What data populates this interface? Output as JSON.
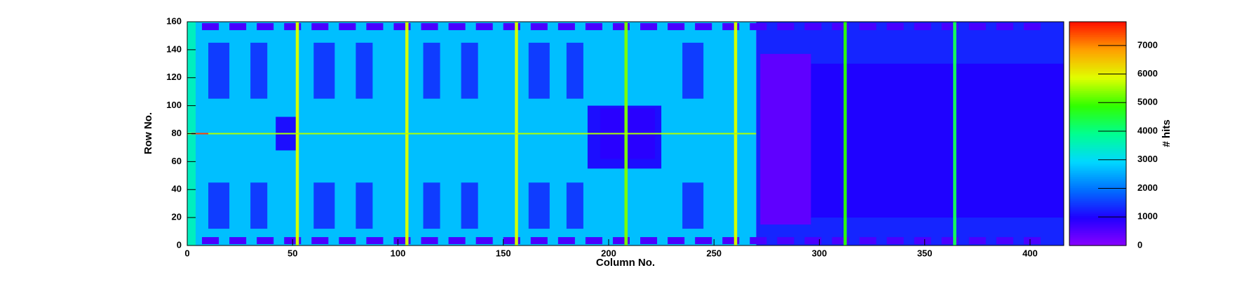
{
  "chart_data": {
    "type": "heatmap",
    "xlabel": "Column No.",
    "ylabel": "Row No.",
    "zlabel": "# hits",
    "xlim": [
      0,
      416
    ],
    "ylim": [
      0,
      160
    ],
    "zlim": [
      0,
      7830
    ],
    "xticks": [
      0,
      50,
      100,
      150,
      200,
      250,
      300,
      350,
      400
    ],
    "yticks": [
      0,
      20,
      40,
      60,
      80,
      100,
      120,
      140,
      160
    ],
    "zticks": [
      0,
      1000,
      2000,
      3000,
      4000,
      5000,
      6000,
      7000
    ],
    "colormap": [
      "#8a00ff",
      "#2000ff",
      "#0070ff",
      "#00d8ff",
      "#00ff90",
      "#30ff00",
      "#e0ff00",
      "#ffa000",
      "#ff1000"
    ],
    "cells": [
      {
        "x": [
          0,
          270
        ],
        "y": [
          0,
          160
        ],
        "value": 2700
      },
      {
        "x": [
          270,
          416
        ],
        "y": [
          0,
          160
        ],
        "value": 1300
      },
      {
        "x": [
          0,
          4
        ],
        "y": [
          0,
          160
        ],
        "value": 3500
      },
      {
        "x": [
          10,
          20
        ],
        "y": [
          105,
          145
        ],
        "value": 1500
      },
      {
        "x": [
          30,
          38
        ],
        "y": [
          105,
          145
        ],
        "value": 1500
      },
      {
        "x": [
          60,
          70
        ],
        "y": [
          105,
          145
        ],
        "value": 1500
      },
      {
        "x": [
          80,
          88
        ],
        "y": [
          105,
          145
        ],
        "value": 1500
      },
      {
        "x": [
          112,
          120
        ],
        "y": [
          105,
          145
        ],
        "value": 1500
      },
      {
        "x": [
          130,
          138
        ],
        "y": [
          105,
          145
        ],
        "value": 1500
      },
      {
        "x": [
          162,
          172
        ],
        "y": [
          105,
          145
        ],
        "value": 1500
      },
      {
        "x": [
          180,
          188
        ],
        "y": [
          105,
          145
        ],
        "value": 1500
      },
      {
        "x": [
          235,
          245
        ],
        "y": [
          105,
          145
        ],
        "value": 1500
      },
      {
        "x": [
          10,
          20
        ],
        "y": [
          12,
          45
        ],
        "value": 1500
      },
      {
        "x": [
          30,
          38
        ],
        "y": [
          12,
          45
        ],
        "value": 1500
      },
      {
        "x": [
          60,
          70
        ],
        "y": [
          12,
          45
        ],
        "value": 1500
      },
      {
        "x": [
          80,
          88
        ],
        "y": [
          12,
          45
        ],
        "value": 1500
      },
      {
        "x": [
          112,
          120
        ],
        "y": [
          12,
          45
        ],
        "value": 1500
      },
      {
        "x": [
          130,
          138
        ],
        "y": [
          12,
          45
        ],
        "value": 1500
      },
      {
        "x": [
          162,
          172
        ],
        "y": [
          12,
          45
        ],
        "value": 1500
      },
      {
        "x": [
          180,
          188
        ],
        "y": [
          12,
          45
        ],
        "value": 1500
      },
      {
        "x": [
          235,
          245
        ],
        "y": [
          12,
          45
        ],
        "value": 1500
      },
      {
        "x": [
          42,
          52
        ],
        "y": [
          68,
          92
        ],
        "value": 1100
      },
      {
        "x": [
          190,
          225
        ],
        "y": [
          55,
          100
        ],
        "value": 1100
      },
      {
        "x": [
          196,
          222
        ],
        "y": [
          62,
          98
        ],
        "value": 900
      },
      {
        "x": [
          296,
          416
        ],
        "y": [
          20,
          130
        ],
        "value": 1000
      },
      {
        "x": [
          272,
          296
        ],
        "y": [
          15,
          137
        ],
        "value": 400
      },
      {
        "x": [
          7,
          15
        ],
        "y": [
          154,
          159
        ],
        "value": 600
      },
      {
        "x": [
          20,
          28
        ],
        "y": [
          154,
          159
        ],
        "value": 600
      },
      {
        "x": [
          33,
          41
        ],
        "y": [
          154,
          159
        ],
        "value": 600
      },
      {
        "x": [
          46,
          54
        ],
        "y": [
          154,
          159
        ],
        "value": 600
      },
      {
        "x": [
          59,
          67
        ],
        "y": [
          154,
          159
        ],
        "value": 600
      },
      {
        "x": [
          72,
          80
        ],
        "y": [
          154,
          159
        ],
        "value": 600
      },
      {
        "x": [
          85,
          93
        ],
        "y": [
          154,
          159
        ],
        "value": 600
      },
      {
        "x": [
          98,
          106
        ],
        "y": [
          154,
          159
        ],
        "value": 600
      },
      {
        "x": [
          111,
          119
        ],
        "y": [
          154,
          159
        ],
        "value": 600
      },
      {
        "x": [
          124,
          132
        ],
        "y": [
          154,
          159
        ],
        "value": 600
      },
      {
        "x": [
          137,
          145
        ],
        "y": [
          154,
          159
        ],
        "value": 600
      },
      {
        "x": [
          150,
          158
        ],
        "y": [
          154,
          159
        ],
        "value": 600
      },
      {
        "x": [
          163,
          171
        ],
        "y": [
          154,
          159
        ],
        "value": 600
      },
      {
        "x": [
          176,
          184
        ],
        "y": [
          154,
          159
        ],
        "value": 600
      },
      {
        "x": [
          189,
          197
        ],
        "y": [
          154,
          159
        ],
        "value": 600
      },
      {
        "x": [
          202,
          210
        ],
        "y": [
          154,
          159
        ],
        "value": 600
      },
      {
        "x": [
          215,
          223
        ],
        "y": [
          154,
          159
        ],
        "value": 600
      },
      {
        "x": [
          228,
          236
        ],
        "y": [
          154,
          159
        ],
        "value": 600
      },
      {
        "x": [
          241,
          249
        ],
        "y": [
          154,
          159
        ],
        "value": 600
      },
      {
        "x": [
          254,
          262
        ],
        "y": [
          154,
          159
        ],
        "value": 600
      },
      {
        "x": [
          267,
          275
        ],
        "y": [
          154,
          159
        ],
        "value": 600
      },
      {
        "x": [
          280,
          288
        ],
        "y": [
          154,
          159
        ],
        "value": 600
      },
      {
        "x": [
          293,
          301
        ],
        "y": [
          154,
          159
        ],
        "value": 600
      },
      {
        "x": [
          306,
          314
        ],
        "y": [
          154,
          159
        ],
        "value": 600
      },
      {
        "x": [
          319,
          327
        ],
        "y": [
          154,
          159
        ],
        "value": 600
      },
      {
        "x": [
          332,
          340
        ],
        "y": [
          154,
          159
        ],
        "value": 600
      },
      {
        "x": [
          345,
          353
        ],
        "y": [
          154,
          159
        ],
        "value": 600
      },
      {
        "x": [
          358,
          366
        ],
        "y": [
          154,
          159
        ],
        "value": 600
      },
      {
        "x": [
          371,
          379
        ],
        "y": [
          154,
          159
        ],
        "value": 600
      },
      {
        "x": [
          384,
          392
        ],
        "y": [
          154,
          159
        ],
        "value": 600
      },
      {
        "x": [
          397,
          405
        ],
        "y": [
          154,
          159
        ],
        "value": 600
      },
      {
        "x": [
          7,
          15
        ],
        "y": [
          1,
          6
        ],
        "value": 600
      },
      {
        "x": [
          20,
          28
        ],
        "y": [
          1,
          6
        ],
        "value": 600
      },
      {
        "x": [
          33,
          41
        ],
        "y": [
          1,
          6
        ],
        "value": 600
      },
      {
        "x": [
          46,
          54
        ],
        "y": [
          1,
          6
        ],
        "value": 600
      },
      {
        "x": [
          59,
          67
        ],
        "y": [
          1,
          6
        ],
        "value": 600
      },
      {
        "x": [
          72,
          80
        ],
        "y": [
          1,
          6
        ],
        "value": 600
      },
      {
        "x": [
          85,
          93
        ],
        "y": [
          1,
          6
        ],
        "value": 600
      },
      {
        "x": [
          98,
          106
        ],
        "y": [
          1,
          6
        ],
        "value": 600
      },
      {
        "x": [
          111,
          119
        ],
        "y": [
          1,
          6
        ],
        "value": 600
      },
      {
        "x": [
          124,
          132
        ],
        "y": [
          1,
          6
        ],
        "value": 600
      },
      {
        "x": [
          137,
          145
        ],
        "y": [
          1,
          6
        ],
        "value": 600
      },
      {
        "x": [
          150,
          158
        ],
        "y": [
          1,
          6
        ],
        "value": 600
      },
      {
        "x": [
          163,
          171
        ],
        "y": [
          1,
          6
        ],
        "value": 600
      },
      {
        "x": [
          176,
          184
        ],
        "y": [
          1,
          6
        ],
        "value": 600
      },
      {
        "x": [
          189,
          197
        ],
        "y": [
          1,
          6
        ],
        "value": 600
      },
      {
        "x": [
          202,
          210
        ],
        "y": [
          1,
          6
        ],
        "value": 600
      },
      {
        "x": [
          215,
          223
        ],
        "y": [
          1,
          6
        ],
        "value": 600
      },
      {
        "x": [
          228,
          236
        ],
        "y": [
          1,
          6
        ],
        "value": 600
      },
      {
        "x": [
          241,
          249
        ],
        "y": [
          1,
          6
        ],
        "value": 600
      },
      {
        "x": [
          254,
          262
        ],
        "y": [
          1,
          6
        ],
        "value": 600
      },
      {
        "x": [
          267,
          275
        ],
        "y": [
          1,
          6
        ],
        "value": 600
      },
      {
        "x": [
          280,
          288
        ],
        "y": [
          1,
          6
        ],
        "value": 600
      },
      {
        "x": [
          293,
          301
        ],
        "y": [
          1,
          6
        ],
        "value": 600
      },
      {
        "x": [
          306,
          314
        ],
        "y": [
          1,
          6
        ],
        "value": 600
      },
      {
        "x": [
          319,
          327
        ],
        "y": [
          1,
          6
        ],
        "value": 600
      },
      {
        "x": [
          332,
          340
        ],
        "y": [
          1,
          6
        ],
        "value": 600
      },
      {
        "x": [
          345,
          353
        ],
        "y": [
          1,
          6
        ],
        "value": 600
      },
      {
        "x": [
          358,
          366
        ],
        "y": [
          1,
          6
        ],
        "value": 600
      },
      {
        "x": [
          371,
          379
        ],
        "y": [
          1,
          6
        ],
        "value": 600
      },
      {
        "x": [
          384,
          392
        ],
        "y": [
          1,
          6
        ],
        "value": 600
      },
      {
        "x": [
          397,
          405
        ],
        "y": [
          1,
          6
        ],
        "value": 600
      },
      {
        "x": [
          51.5,
          53
        ],
        "y": [
          0,
          160
        ],
        "value": 5800
      },
      {
        "x": [
          103.5,
          105
        ],
        "y": [
          0,
          160
        ],
        "value": 5800
      },
      {
        "x": [
          155.5,
          157
        ],
        "y": [
          0,
          160
        ],
        "value": 5800
      },
      {
        "x": [
          207.5,
          209
        ],
        "y": [
          0,
          160
        ],
        "value": 5300
      },
      {
        "x": [
          259.5,
          261
        ],
        "y": [
          0,
          160
        ],
        "value": 5800
      },
      {
        "x": [
          311.5,
          313
        ],
        "y": [
          0,
          160
        ],
        "value": 4800
      },
      {
        "x": [
          363.5,
          365
        ],
        "y": [
          0,
          160
        ],
        "value": 4300
      },
      {
        "x": [
          0,
          270
        ],
        "y": [
          79.5,
          80.5
        ],
        "value": 5600
      },
      {
        "x": [
          2,
          10
        ],
        "y": [
          79.5,
          80.5
        ],
        "value": 7500
      }
    ]
  }
}
